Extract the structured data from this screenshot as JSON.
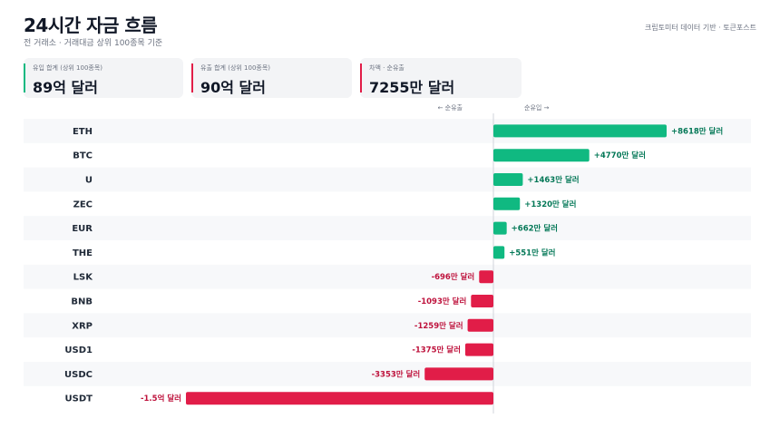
{
  "header": {
    "title": "24시간 자금 흐름",
    "subtitle": "전 거래소 · 거래대금 상위 100종목 기준",
    "source": "크립토미터 데이터 기반 · 토큰포스트"
  },
  "cards": [
    {
      "label": "유입 합계 (상위 100종목)",
      "value": "89억 달러",
      "accent": "#10b981"
    },
    {
      "label": "유출 합계 (상위 100종목)",
      "value": "90억 달러",
      "accent": "#e11d48"
    },
    {
      "label": "차액 · 순유출",
      "value": "7255만 달러",
      "accent": "#e11d48"
    }
  ],
  "chart_data": {
    "type": "bar",
    "orientation": "horizontal",
    "direction_labels": {
      "negative": "← 순유출",
      "positive": "순유입 →"
    },
    "colors": {
      "positive": "#10b981",
      "negative": "#e11d48"
    },
    "categories": [
      "ETH",
      "BTC",
      "U",
      "ZEC",
      "EUR",
      "THE",
      "LSK",
      "BNB",
      "XRP",
      "USD1",
      "USDC",
      "USDT"
    ],
    "values": [
      8618,
      4770,
      1463,
      1320,
      662,
      551,
      -696,
      -1093,
      -1259,
      -1375,
      -3353,
      -15000
    ],
    "value_unit": "만 달러",
    "data_labels": [
      "+8618만 달러",
      "+4770만 달러",
      "+1463만 달러",
      "+1320만 달러",
      "+662만 달러",
      "+551만 달러",
      "-696만 달러",
      "-1093만 달러",
      "-1259만 달러",
      "-1375만 달러",
      "-3353만 달러",
      "-1.5억 달러"
    ]
  }
}
